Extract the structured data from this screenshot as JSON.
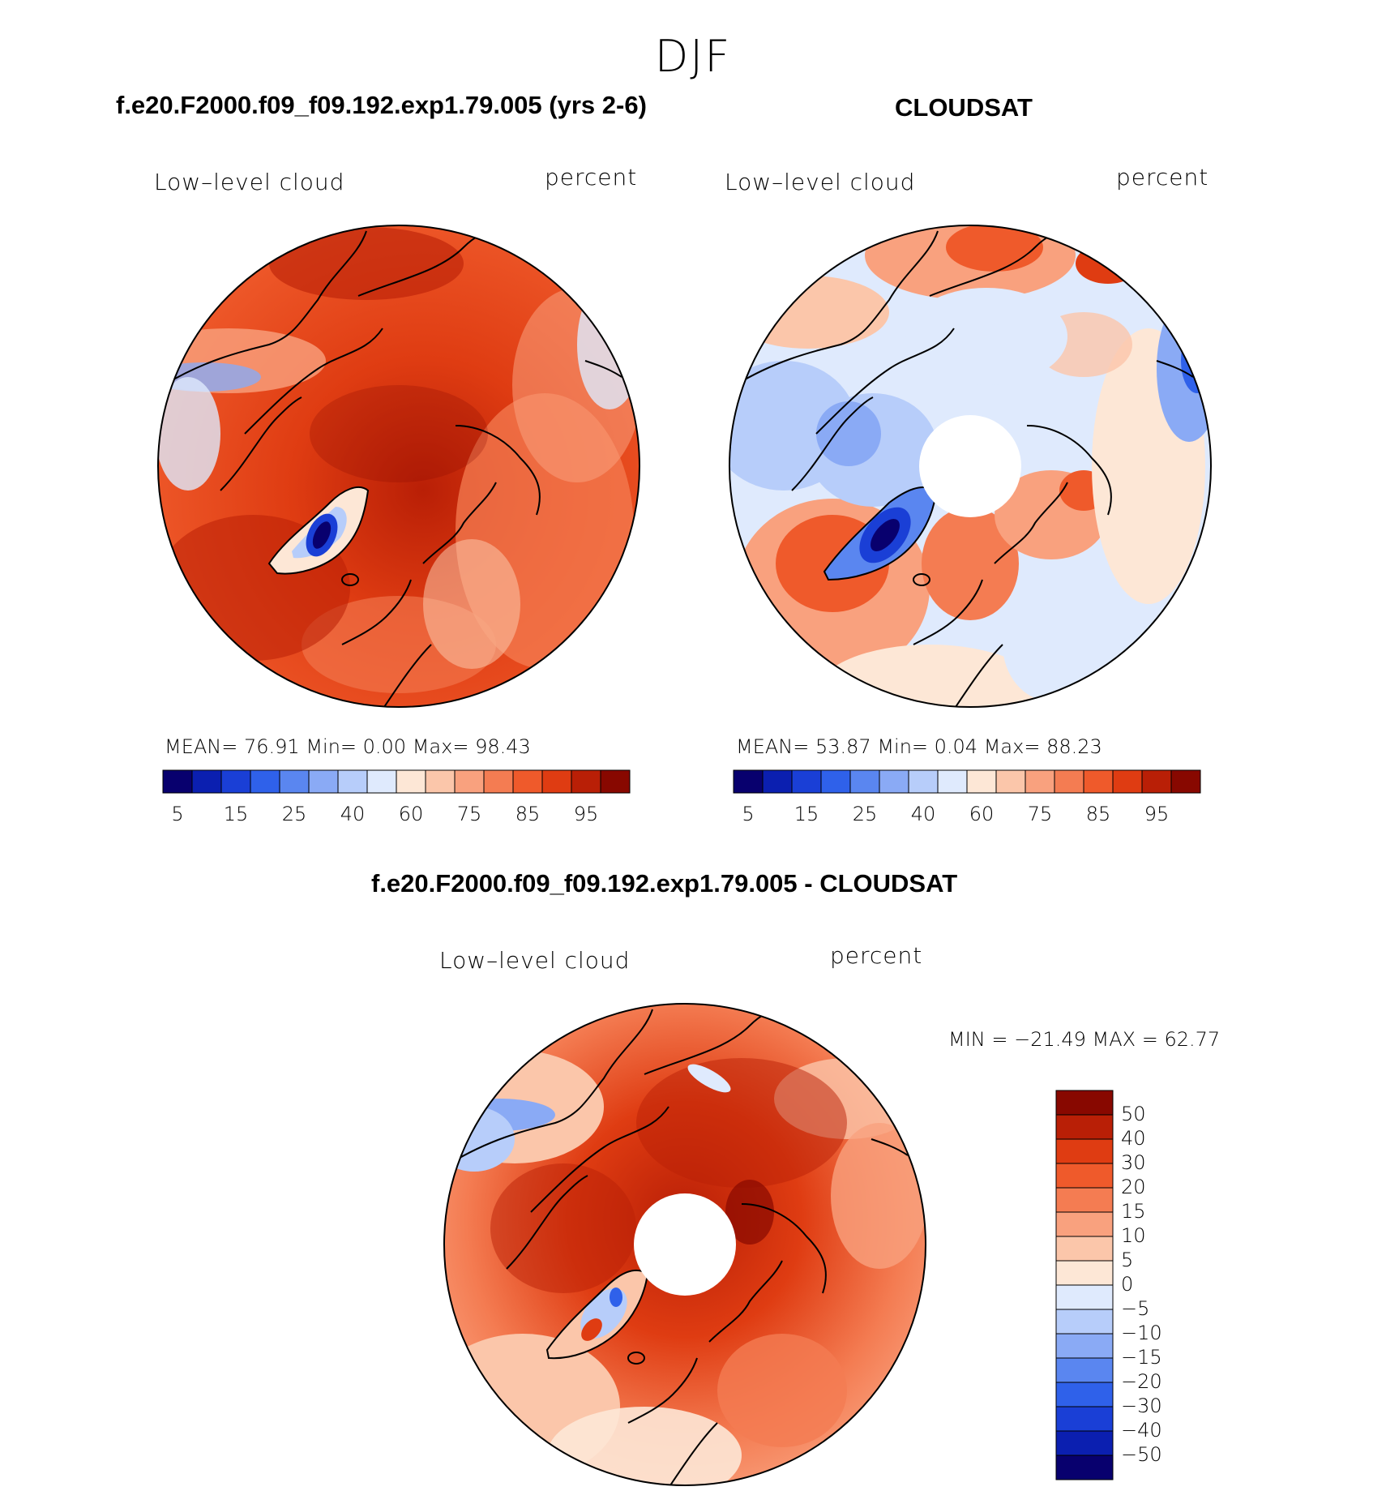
{
  "figure": {
    "season": "DJF",
    "difference_title": "f.e20.F2000.f09_f09.192.exp1.79.005 - CLOUDSAT"
  },
  "panels": [
    {
      "id": "model",
      "title": "f.e20.F2000.f09_f09.192.exp1.79.005 (yrs 2-6)",
      "left_label": "Low–level cloud",
      "right_label": "percent",
      "stats": "MEAN=   76.91   Min=     0.00   Max=   98.43",
      "has_pole_hole": false,
      "base_color": "#e8451c"
    },
    {
      "id": "obs",
      "title": "CLOUDSAT",
      "left_label": "Low–level cloud",
      "right_label": "percent",
      "stats": "MEAN=   53.87   Min=     0.04   Max=   88.23",
      "has_pole_hole": true,
      "base_color": "#dbe7fb"
    },
    {
      "id": "diff",
      "title": "",
      "left_label": "Low–level cloud",
      "right_label": "percent",
      "stats": "MIN  =  −21.49  MAX  =     62.77",
      "has_pole_hole": true,
      "base_color": "#f26a3b"
    }
  ],
  "colorbar_abs": {
    "colors": [
      "#08006e",
      "#0b1fb0",
      "#1a3fd6",
      "#2f61ea",
      "#5a86f0",
      "#8aaaf5",
      "#b7cdfa",
      "#dfeafd",
      "#fde7d6",
      "#fbc6aa",
      "#f9a17e",
      "#f47c52",
      "#ef5a2b",
      "#df3c12",
      "#b91f06",
      "#880800"
    ],
    "tick_labels": [
      "5",
      "15",
      "25",
      "40",
      "60",
      "75",
      "85",
      "95"
    ]
  },
  "colorbar_diff": {
    "colors": [
      "#880800",
      "#b91f06",
      "#df3c12",
      "#ef5a2b",
      "#f47c52",
      "#f9a17e",
      "#fbc6aa",
      "#fde7d6",
      "#dfeafd",
      "#b7cdfa",
      "#8aaaf5",
      "#5a86f0",
      "#2f61ea",
      "#1a3fd6",
      "#0b1fb0",
      "#08006e"
    ],
    "tick_labels": [
      "50",
      "40",
      "30",
      "20",
      "15",
      "10",
      "5",
      "0",
      "−5",
      "−10",
      "−15",
      "−20",
      "−30",
      "−40",
      "−50"
    ]
  }
}
